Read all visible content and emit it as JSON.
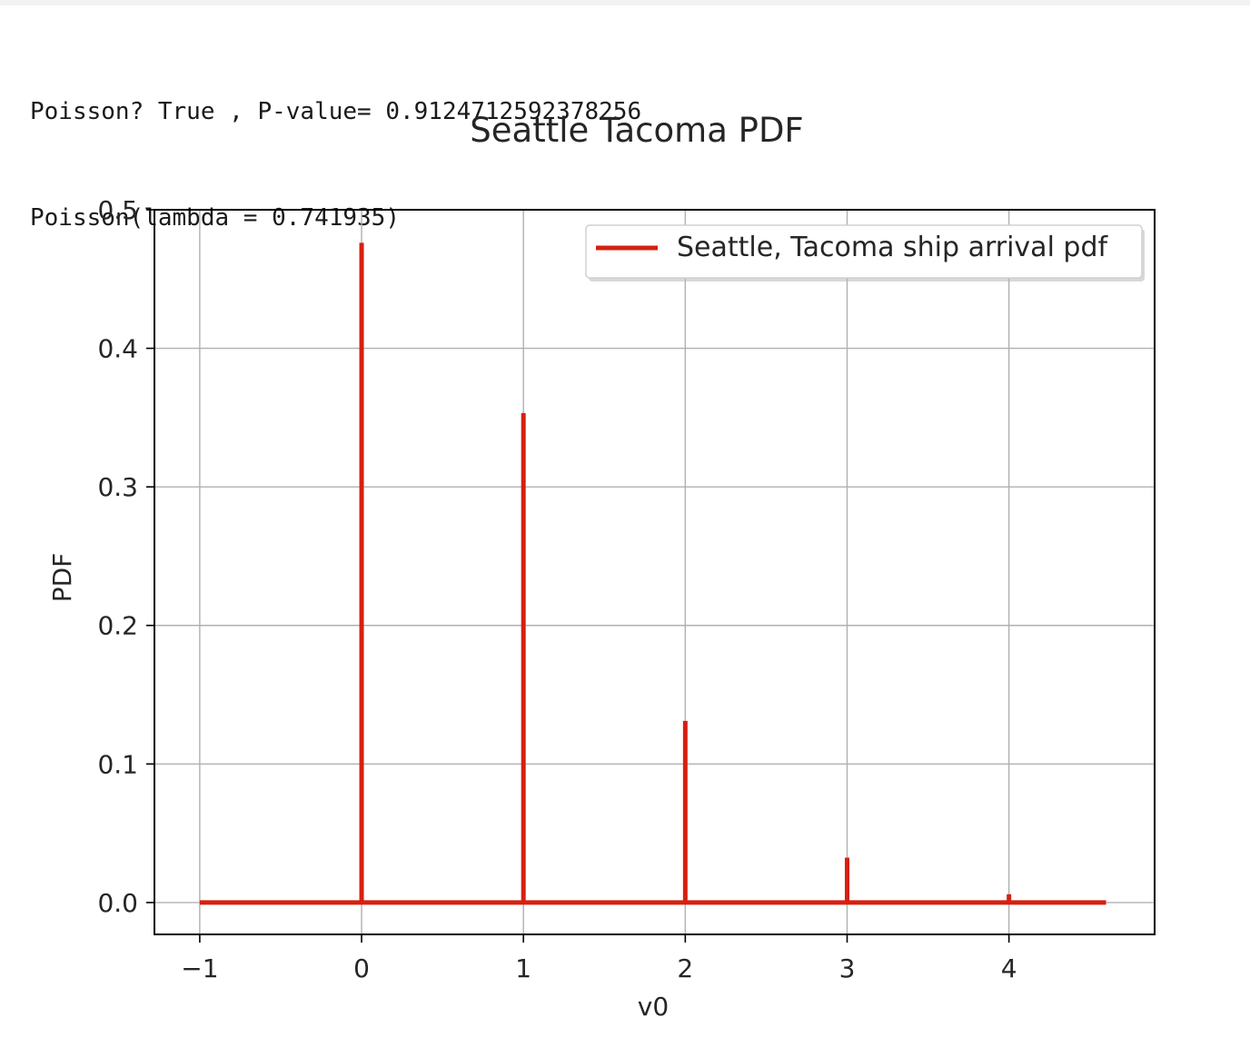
{
  "output": {
    "line1": "Poisson? True , P-value= 0.9124712592378256",
    "line2": "Poisson(lambda = 0.741935)"
  },
  "chart_data": {
    "type": "line",
    "title": "Seattle Tacoma PDF",
    "xlabel": "v0",
    "ylabel": "PDF",
    "xlim": [
      -1.28,
      4.9
    ],
    "ylim": [
      -0.023,
      0.5
    ],
    "xticks": [
      -1,
      0,
      1,
      2,
      3,
      4
    ],
    "xtick_labels": [
      "−1",
      "0",
      "1",
      "2",
      "3",
      "4"
    ],
    "yticks": [
      0.0,
      0.1,
      0.2,
      0.3,
      0.4,
      0.5
    ],
    "ytick_labels": [
      "0.0",
      "0.1",
      "0.2",
      "0.3",
      "0.4",
      "0.5"
    ],
    "grid": true,
    "legend_position": "top-right",
    "series": [
      {
        "name": "Seattle, Tacoma ship arrival pdf",
        "color": "#d62010",
        "baseline_x_range": [
          -1,
          4.6
        ],
        "points": [
          {
            "x": 0,
            "y": 0.4762
          },
          {
            "x": 1,
            "y": 0.3533
          },
          {
            "x": 2,
            "y": 0.1311
          },
          {
            "x": 3,
            "y": 0.0324
          },
          {
            "x": 4,
            "y": 0.006
          }
        ]
      }
    ]
  }
}
